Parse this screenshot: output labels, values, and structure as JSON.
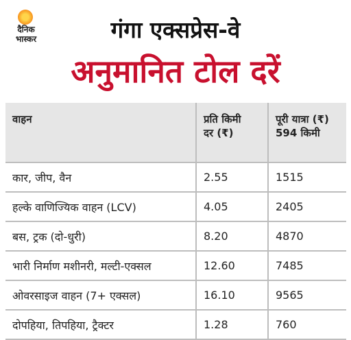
{
  "logo": {
    "line1": "दैनिक",
    "line2": "भास्कर"
  },
  "header": {
    "title": "गंगा एक्सप्रेस-वे",
    "subtitle": "अनुमानित टोल दरें"
  },
  "table": {
    "columns": [
      [
        "वाहन"
      ],
      [
        "प्रति किमी",
        "दर (₹)"
      ],
      [
        "पूरी यात्रा (₹)",
        "594 किमी"
      ]
    ],
    "rows": [
      [
        "कार, जीप, वैन",
        "2.55",
        "1515"
      ],
      [
        "हल्के वाणिज्यिक वाहन (LCV)",
        "4.05",
        "2405"
      ],
      [
        "बस, ट्रक (दो-धुरी)",
        "8.20",
        "4870"
      ],
      [
        "भारी निर्माण मशीनरी, मल्टी-एक्सल",
        "12.60",
        "7485"
      ],
      [
        "ओवरसाइज वाहन (7+ एक्सल)",
        "16.10",
        "9565"
      ],
      [
        "दोपहिया, तिपहिया, ट्रैक्टर",
        "1.28",
        "760"
      ]
    ]
  }
}
